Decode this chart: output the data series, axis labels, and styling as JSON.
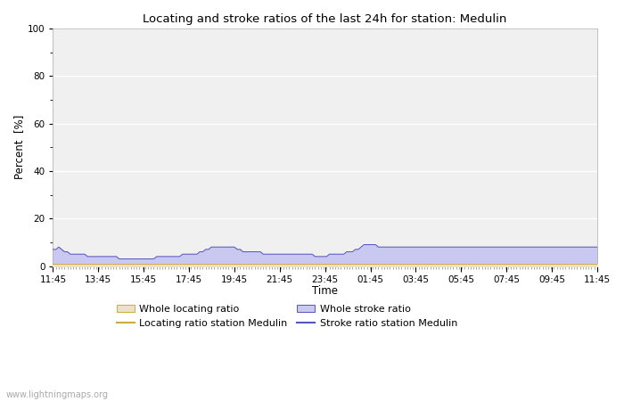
{
  "title": "Locating and stroke ratios of the last 24h for station: Medulin",
  "xlabel": "Time",
  "ylabel": "Percent  [%]",
  "ylim": [
    0,
    100
  ],
  "yticks_major": [
    0,
    20,
    40,
    60,
    80,
    100
  ],
  "yticks_minor": [
    10,
    30,
    50,
    70,
    90
  ],
  "x_tick_labels": [
    "11:45",
    "13:45",
    "15:45",
    "17:45",
    "19:45",
    "21:45",
    "23:45",
    "01:45",
    "03:45",
    "05:45",
    "07:45",
    "09:45",
    "11:45"
  ],
  "bg_color": "#ffffff",
  "plot_bg_color": "#f0f0f0",
  "grid_color": "#ffffff",
  "watermark": "www.lightningmaps.org",
  "stroke_fill_color": "#c8c8f0",
  "stroke_line_color": "#5555bb",
  "locating_fill_color": "#ede0c8",
  "locating_line_color": "#ccaa44",
  "stroke_values": [
    7,
    7,
    8,
    7,
    6,
    6,
    5,
    5,
    5,
    5,
    5,
    5,
    4,
    4,
    4,
    4,
    4,
    4,
    4,
    4,
    4,
    4,
    4,
    3,
    3,
    3,
    3,
    3,
    3,
    3,
    3,
    3,
    3,
    3,
    3,
    3,
    4,
    4,
    4,
    4,
    4,
    4,
    4,
    4,
    4,
    5,
    5,
    5,
    5,
    5,
    5,
    6,
    6,
    7,
    7,
    8,
    8,
    8,
    8,
    8,
    8,
    8,
    8,
    8,
    7,
    7,
    6,
    6,
    6,
    6,
    6,
    6,
    6,
    5,
    5,
    5,
    5,
    5,
    5,
    5,
    5,
    5,
    5,
    5,
    5,
    5,
    5,
    5,
    5,
    5,
    5,
    4,
    4,
    4,
    4,
    4,
    5,
    5,
    5,
    5,
    5,
    5,
    6,
    6,
    6,
    7,
    7,
    8,
    9,
    9,
    9,
    9,
    9,
    8,
    8,
    8,
    8,
    8,
    8,
    8,
    8,
    8,
    8,
    8,
    8,
    8,
    8,
    8,
    8,
    8,
    8,
    8,
    8,
    8,
    8,
    8,
    8,
    8,
    8,
    8,
    8,
    8,
    8,
    8,
    8,
    8,
    8,
    8,
    8,
    8,
    8,
    8,
    8,
    8,
    8,
    8,
    8,
    8,
    8,
    8,
    8,
    8,
    8,
    8,
    8,
    8,
    8,
    8,
    8,
    8,
    8,
    8,
    8,
    8,
    8,
    8,
    8,
    8,
    8,
    8,
    8,
    8,
    8,
    8,
    8,
    8,
    8,
    8,
    8,
    8,
    8,
    8
  ],
  "locating_values": [
    1,
    1,
    1,
    1,
    1,
    1,
    1,
    1,
    1,
    1,
    1,
    1,
    1,
    1,
    1,
    1,
    1,
    1,
    1,
    1,
    1,
    1,
    1,
    1,
    1,
    1,
    1,
    1,
    1,
    1,
    1,
    1,
    1,
    1,
    1,
    1,
    1,
    1,
    1,
    1,
    1,
    1,
    1,
    1,
    1,
    1,
    1,
    1,
    1,
    1,
    1,
    1,
    1,
    1,
    1,
    1,
    1,
    1,
    1,
    1,
    1,
    1,
    1,
    1,
    1,
    1,
    1,
    1,
    1,
    1,
    1,
    1,
    1,
    1,
    1,
    1,
    1,
    1,
    1,
    1,
    1,
    1,
    1,
    1,
    1,
    1,
    1,
    1,
    1,
    1,
    1,
    1,
    1,
    1,
    1,
    1,
    1,
    1,
    1,
    1,
    1,
    1,
    1,
    1,
    1,
    1,
    1,
    1,
    1,
    1,
    1,
    1,
    1,
    1,
    1,
    1,
    1,
    1,
    1,
    1,
    1,
    1,
    1,
    1,
    1,
    1,
    1,
    1,
    1,
    1,
    1,
    1,
    1,
    1,
    1,
    1,
    1,
    1,
    1,
    1,
    1,
    1,
    1,
    1,
    1,
    1,
    1,
    1,
    1,
    1,
    1,
    1,
    1,
    1,
    1,
    1,
    1,
    1,
    1,
    1,
    1,
    1,
    1,
    1,
    1,
    1,
    1,
    1,
    1,
    1,
    1,
    1,
    1,
    1,
    1,
    1,
    1,
    1,
    1,
    1,
    1,
    1,
    1,
    1,
    1,
    1,
    1,
    1,
    1,
    1
  ],
  "num_points": 190,
  "legend_items": [
    {
      "type": "patch",
      "facecolor": "#ede0c8",
      "edgecolor": "#ccaa44",
      "label": "Whole locating ratio"
    },
    {
      "type": "line",
      "color": "#ccaa44",
      "label": "Locating ratio station Medulin"
    },
    {
      "type": "patch",
      "facecolor": "#c8c8f0",
      "edgecolor": "#5555bb",
      "label": "Whole stroke ratio"
    },
    {
      "type": "line",
      "color": "#5555bb",
      "label": "Stroke ratio station Medulin"
    }
  ]
}
